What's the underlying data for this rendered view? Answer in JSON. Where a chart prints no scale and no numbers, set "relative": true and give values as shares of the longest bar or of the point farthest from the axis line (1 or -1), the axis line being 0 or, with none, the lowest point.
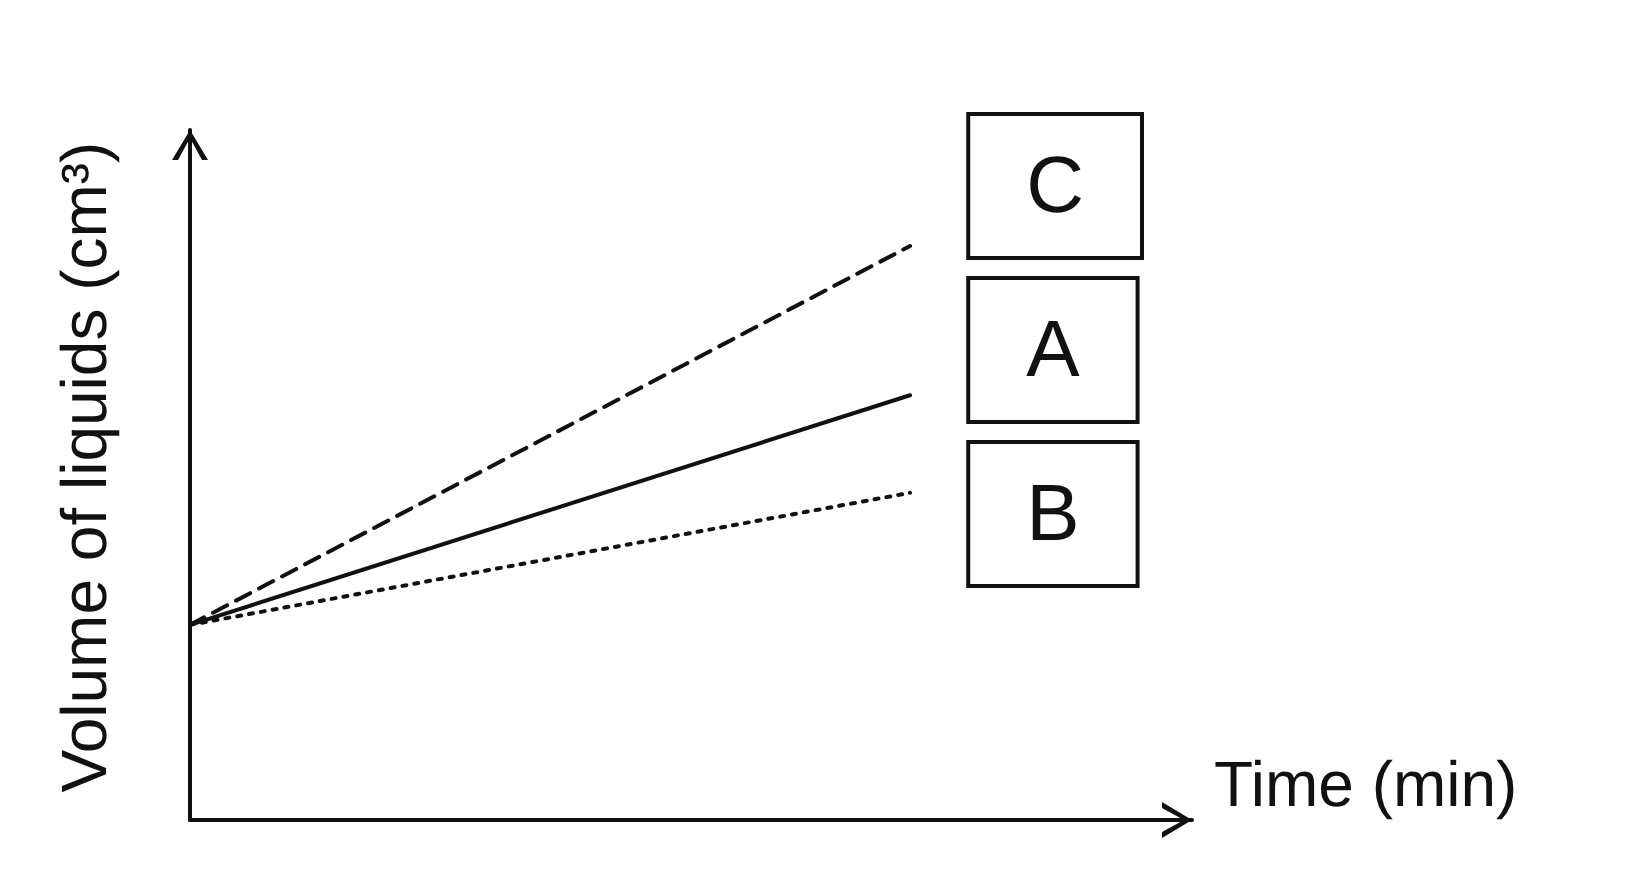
{
  "chart_data": {
    "type": "line",
    "relative": true,
    "xlabel": "Time (min)",
    "ylabel": "Volume of liquids (cm³)",
    "legend": "top right",
    "categories": [
      null,
      null
    ],
    "series": [
      {
        "name": "C",
        "color": "#111111",
        "line_style": "dashed",
        "values": [
          0.34,
          1
        ]
      },
      {
        "name": "A",
        "color": "#111111",
        "line_style": "solid",
        "values": [
          0.34,
          0.74
        ]
      },
      {
        "name": "B",
        "color": "#111111",
        "line_style": "dotted",
        "values": [
          0.34,
          0.57
        ]
      }
    ]
  }
}
